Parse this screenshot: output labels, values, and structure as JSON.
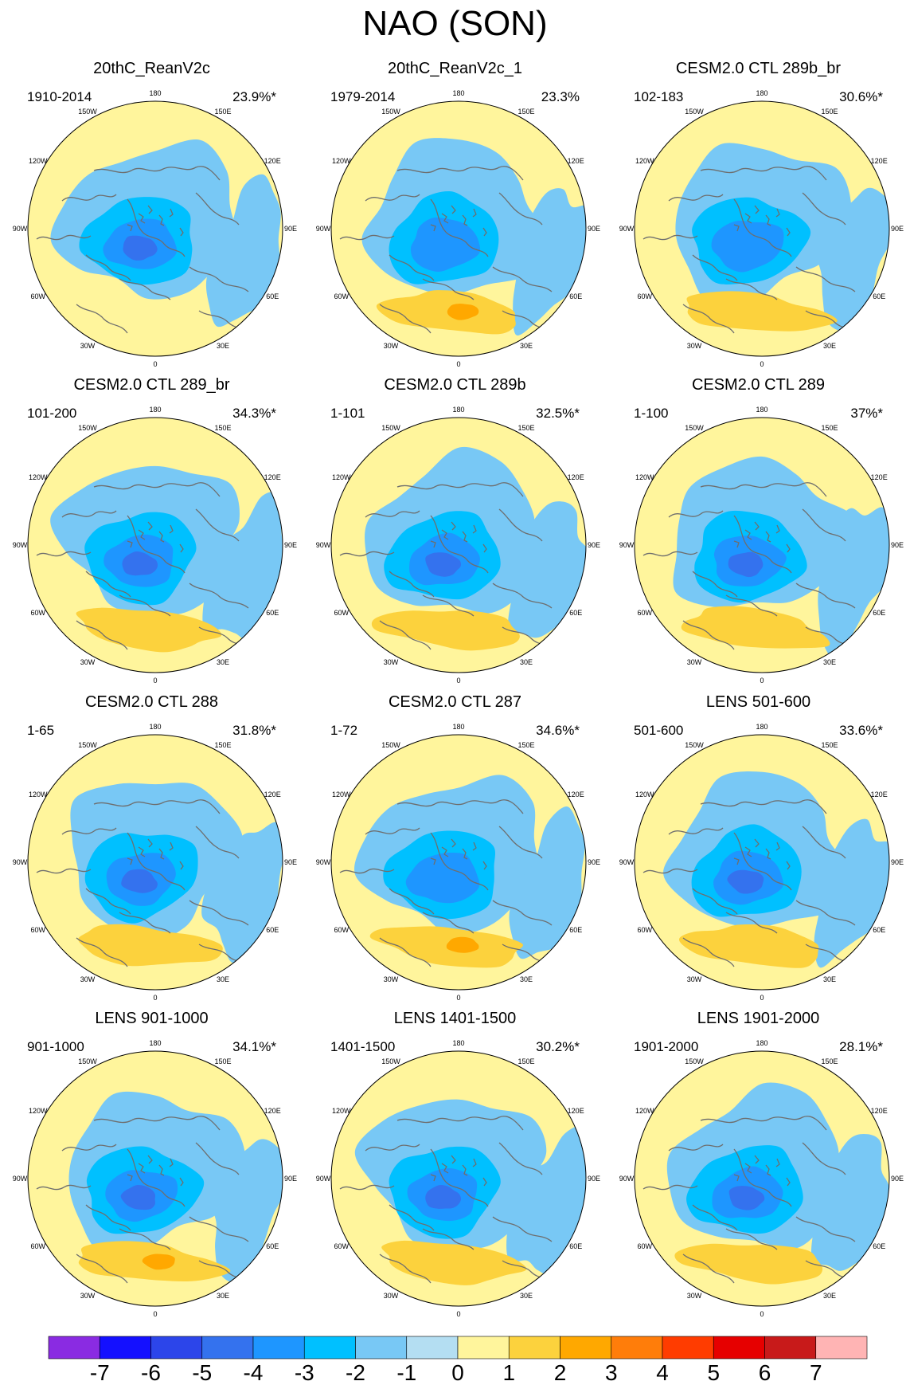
{
  "title": "NAO (SON)",
  "colors": {
    "levels": [
      "#8a2be2",
      "#1410ff",
      "#2c45ea",
      "#3472ee",
      "#1e96ff",
      "#00c0ff",
      "#78c8f5",
      "#b4def2",
      "#fff59c",
      "#fcd23d",
      "#ffa800",
      "#ff7d0a",
      "#ff3c00",
      "#e60000",
      "#c81a1a",
      "#ffb4b4"
    ],
    "coast": "#6e6e6e"
  },
  "colorbar": {
    "ticks": [
      "-7",
      "-6",
      "-5",
      "-4",
      "-3",
      "-2",
      "-1",
      "0",
      "1",
      "2",
      "3",
      "4",
      "5",
      "6",
      "7"
    ]
  },
  "lon_labels": [
    "180",
    "150E",
    "120E",
    "90E",
    "60E",
    "30E",
    "0",
    "30W",
    "60W",
    "90W",
    "120W",
    "150W"
  ],
  "panels": [
    {
      "title": "20thC_ReanV2c",
      "period": "1910-2014",
      "pct": "23.9%*"
    },
    {
      "title": "20thC_ReanV2c_1",
      "period": "1979-2014",
      "pct": "23.3%"
    },
    {
      "title": "CESM2.0 CTL 289b_br",
      "period": "102-183",
      "pct": "30.6%*"
    },
    {
      "title": "CESM2.0 CTL 289_br",
      "period": "101-200",
      "pct": "34.3%*"
    },
    {
      "title": "CESM2.0 CTL 289b",
      "period": "1-101",
      "pct": "32.5%*"
    },
    {
      "title": "CESM2.0 CTL 289",
      "period": "1-100",
      "pct": "37%*"
    },
    {
      "title": "CESM2.0 CTL 288",
      "period": "1-65",
      "pct": "31.8%*"
    },
    {
      "title": "CESM2.0 CTL 287",
      "period": "1-72",
      "pct": "34.6%*"
    },
    {
      "title": "LENS 501-600",
      "period": "501-600",
      "pct": "33.6%*"
    },
    {
      "title": "LENS 901-1000",
      "period": "901-1000",
      "pct": "34.1%*"
    },
    {
      "title": "LENS 1401-1500",
      "period": "1401-1500",
      "pct": "30.2%*"
    },
    {
      "title": "LENS 1901-2000",
      "period": "1901-2000",
      "pct": "28.1%*"
    }
  ],
  "chart_data": {
    "type": "heatmap",
    "title": "NAO (SON)",
    "projection": "north polar stereographic",
    "colorbar_levels": [
      -7,
      -6,
      -5,
      -4,
      -3,
      -2,
      -1,
      0,
      1,
      2,
      3,
      4,
      5,
      6,
      7
    ],
    "panels": [
      {
        "title": "20thC_ReanV2c",
        "period": "1910-2014",
        "explained_variance_pct": 23.9,
        "significant": true,
        "min_level": -4,
        "max_level": 1
      },
      {
        "title": "20thC_ReanV2c_1",
        "period": "1979-2014",
        "explained_variance_pct": 23.3,
        "significant": false,
        "min_level": -3,
        "max_level": 3
      },
      {
        "title": "CESM2.0 CTL 289b_br",
        "period": "102-183",
        "explained_variance_pct": 30.6,
        "significant": true,
        "min_level": -3,
        "max_level": 2
      },
      {
        "title": "CESM2.0 CTL 289_br",
        "period": "101-200",
        "explained_variance_pct": 34.3,
        "significant": true,
        "min_level": -4,
        "max_level": 2
      },
      {
        "title": "CESM2.0 CTL 289b",
        "period": "1-101",
        "explained_variance_pct": 32.5,
        "significant": true,
        "min_level": -4,
        "max_level": 2
      },
      {
        "title": "CESM2.0 CTL 289",
        "period": "1-100",
        "explained_variance_pct": 37.0,
        "significant": true,
        "min_level": -4,
        "max_level": 2
      },
      {
        "title": "CESM2.0 CTL 288",
        "period": "1-65",
        "explained_variance_pct": 31.8,
        "significant": true,
        "min_level": -4,
        "max_level": 2
      },
      {
        "title": "CESM2.0 CTL 287",
        "period": "1-72",
        "explained_variance_pct": 34.6,
        "significant": true,
        "min_level": -3,
        "max_level": 3
      },
      {
        "title": "LENS 501-600",
        "period": "501-600",
        "explained_variance_pct": 33.6,
        "significant": true,
        "min_level": -4,
        "max_level": 2
      },
      {
        "title": "LENS 901-1000",
        "period": "901-1000",
        "explained_variance_pct": 34.1,
        "significant": true,
        "min_level": -4,
        "max_level": 3
      },
      {
        "title": "LENS 1401-1500",
        "period": "1401-1500",
        "explained_variance_pct": 30.2,
        "significant": true,
        "min_level": -4,
        "max_level": 2
      },
      {
        "title": "LENS 1901-2000",
        "period": "1901-2000",
        "explained_variance_pct": 28.1,
        "significant": true,
        "min_level": -4,
        "max_level": 2
      }
    ]
  }
}
